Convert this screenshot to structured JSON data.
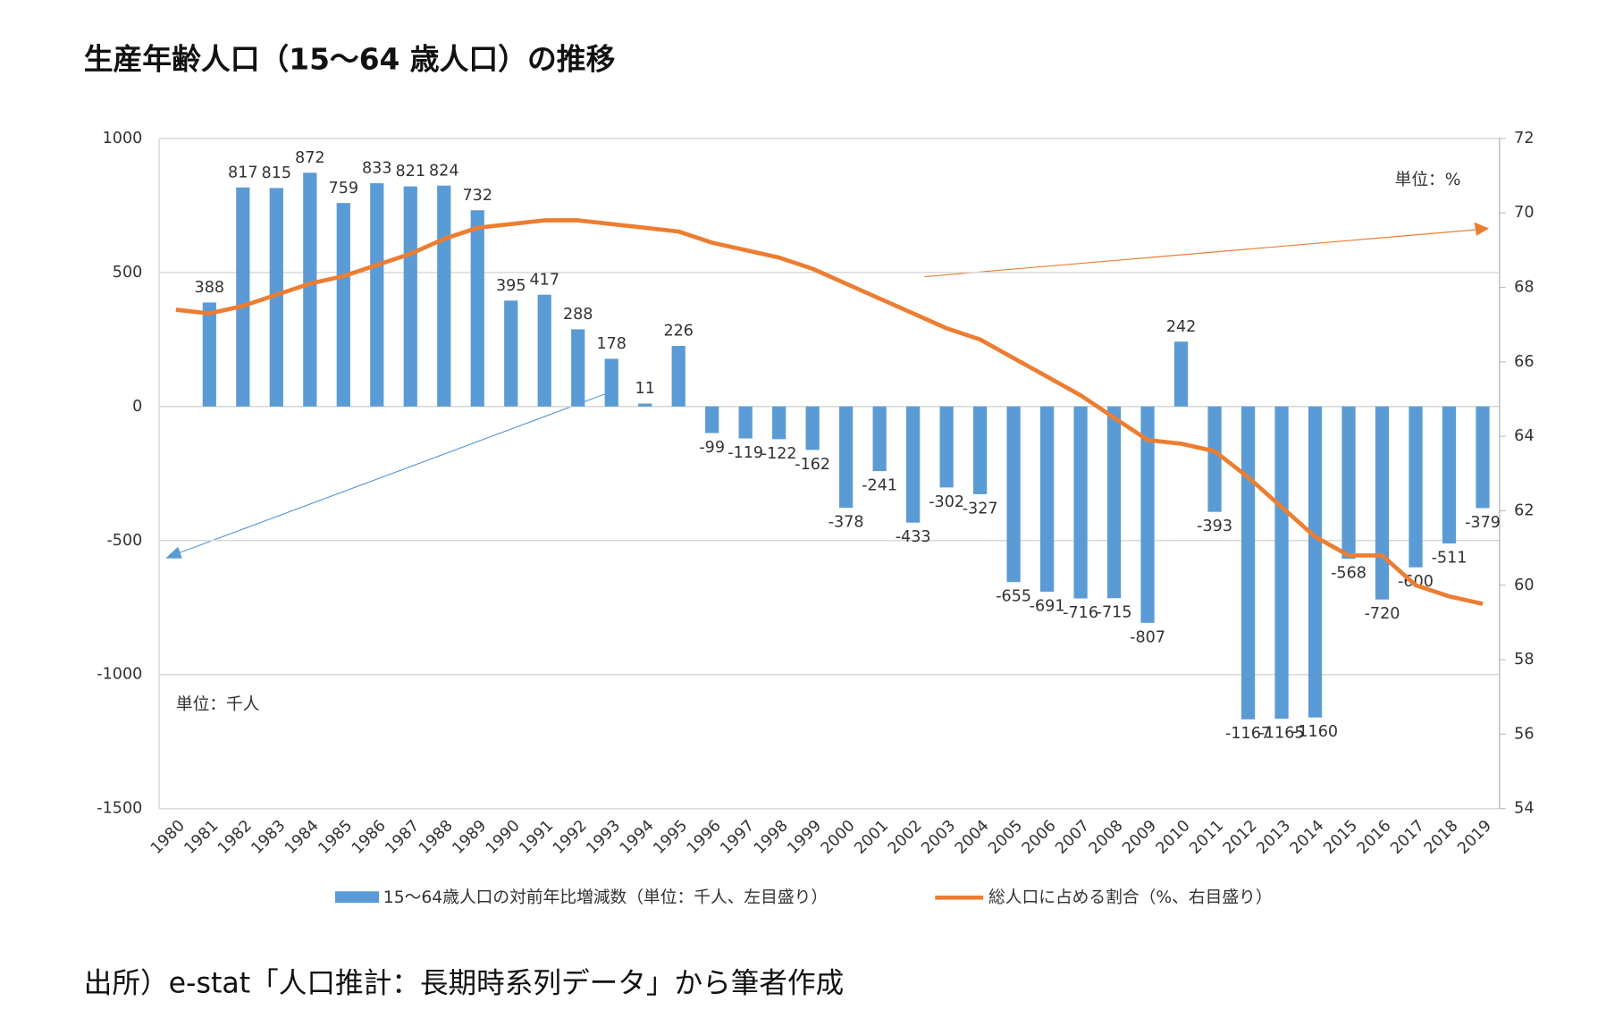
{
  "chart_data": {
    "type": "bar-line",
    "title": "生産年齢人口（15～64 歳人口）の推移",
    "source": "出所）e-stat「人口推計：長期時系列データ」から筆者作成",
    "annotations": [
      "単位：%",
      "単位：千人"
    ],
    "categories": [
      "1980",
      "1981",
      "1982",
      "1983",
      "1984",
      "1985",
      "1986",
      "1987",
      "1988",
      "1989",
      "1990",
      "1991",
      "1992",
      "1993",
      "1994",
      "1995",
      "1996",
      "1997",
      "1998",
      "1999",
      "2000",
      "2001",
      "2002",
      "2003",
      "2004",
      "2005",
      "2006",
      "2007",
      "2008",
      "2009",
      "2010",
      "2011",
      "2012",
      "2013",
      "2014",
      "2015",
      "2016",
      "2017",
      "2018",
      "2019"
    ],
    "series": [
      {
        "name": "15～64歳人口の対前年比増減数（単位：千人、左目盛り）",
        "type": "bar",
        "color": "#5b9bd5",
        "values": [
          null,
          388,
          817,
          815,
          872,
          759,
          833,
          821,
          824,
          732,
          395,
          417,
          288,
          178,
          11,
          226,
          -99,
          -119,
          -122,
          -162,
          -378,
          -241,
          -433,
          -302,
          -327,
          -655,
          -691,
          -716,
          -715,
          -807,
          242,
          -393,
          -1167,
          -1165,
          -1160,
          -568,
          -720,
          -600,
          -511,
          -379
        ]
      },
      {
        "name": "総人口に占める割合（%、右目盛り）",
        "type": "line",
        "axis": "y2",
        "color": "#ed7d31",
        "values": [
          67.4,
          67.3,
          67.5,
          67.8,
          68.1,
          68.3,
          68.6,
          68.9,
          69.3,
          69.6,
          69.7,
          69.8,
          69.8,
          69.7,
          69.6,
          69.5,
          69.2,
          69.0,
          68.8,
          68.5,
          68.1,
          67.7,
          67.3,
          66.9,
          66.6,
          66.1,
          65.6,
          65.1,
          64.5,
          63.9,
          63.8,
          63.6,
          62.9,
          62.1,
          61.3,
          60.8,
          60.8,
          60.0,
          59.7,
          59.5
        ]
      }
    ],
    "ylim": [
      -1500,
      1000
    ],
    "yticks": [
      1000,
      500,
      0,
      -500,
      -1000,
      -1500
    ],
    "y2lim": [
      54,
      72
    ],
    "y2ticks": [
      72,
      70,
      68,
      66,
      64,
      62,
      60,
      58,
      56,
      54
    ],
    "grid": true
  }
}
